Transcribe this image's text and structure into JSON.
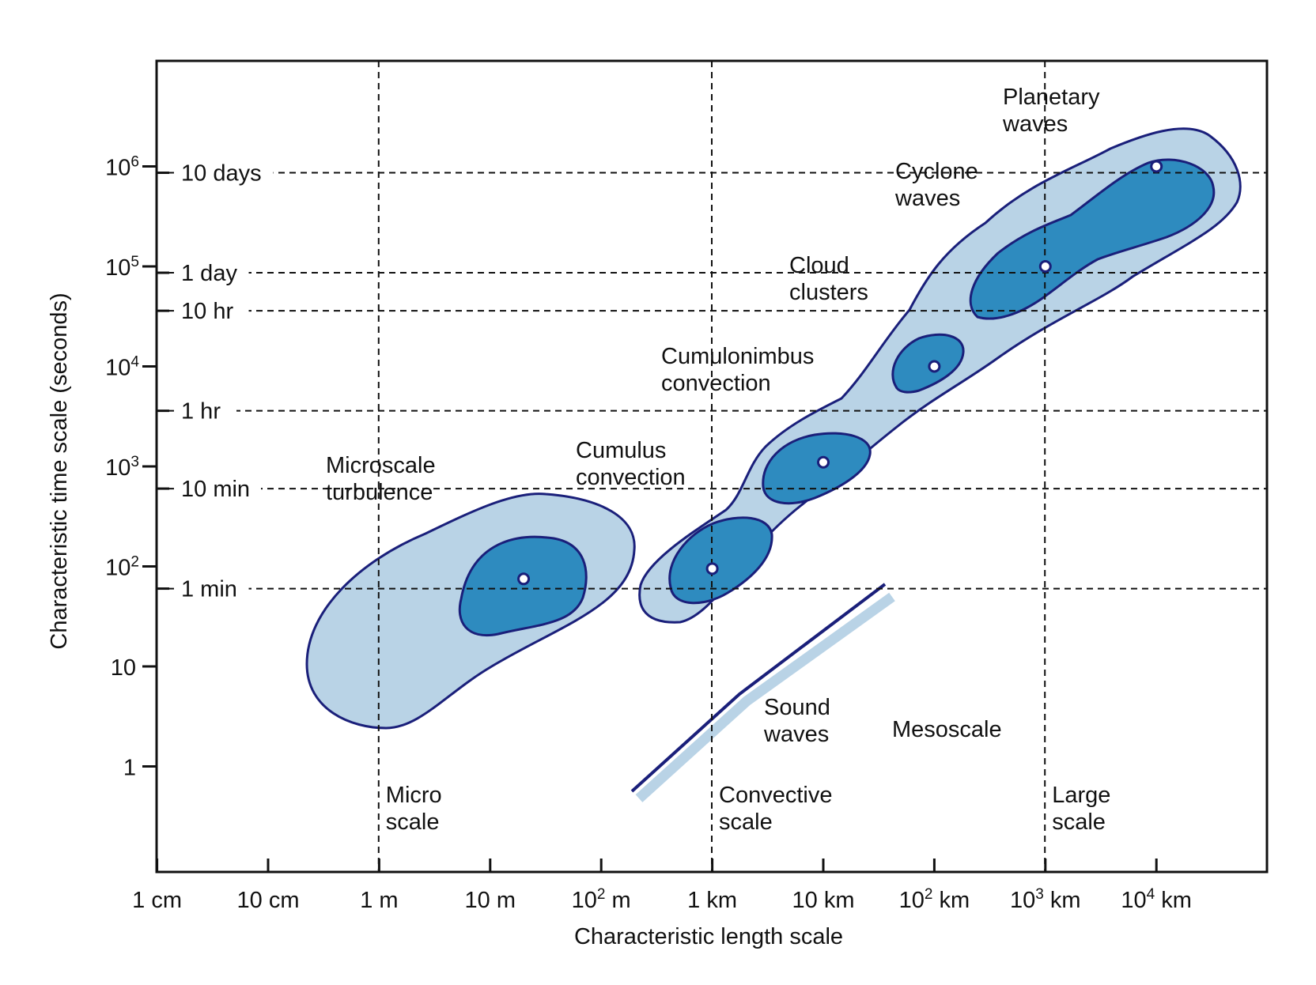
{
  "chart_data": {
    "type": "scatter",
    "title": "",
    "xlabel": "Characteristic length scale",
    "ylabel": "Characteristic time scale (seconds)",
    "x_scale": "log",
    "y_scale": "log",
    "x_unit": "m",
    "y_unit": "s",
    "xlim": [
      0.01,
      100000000
    ],
    "ylim": [
      0.1,
      10000000
    ],
    "grid": "dashed reference lines",
    "legend": "none",
    "colors": {
      "outline": "#1a1f7a",
      "outer_region": "#b9d3e6",
      "inner_region": "#2e8bbf",
      "sound_band": "#b9d3e6",
      "point": "#ffffff",
      "grid": "#111111"
    },
    "x_ticks": [
      {
        "value": 0.01,
        "label": "1 cm"
      },
      {
        "value": 0.1,
        "label": "10 cm"
      },
      {
        "value": 1,
        "label": "1 m"
      },
      {
        "value": 10,
        "label": "10 m"
      },
      {
        "value": 100,
        "base": "10",
        "sup": "2",
        "unit": " m"
      },
      {
        "value": 1000,
        "label": "1 km"
      },
      {
        "value": 10000,
        "label": "10 km"
      },
      {
        "value": 100000,
        "base": "10",
        "sup": "2",
        "unit": " km"
      },
      {
        "value": 1000000,
        "base": "10",
        "sup": "3",
        "unit": " km"
      },
      {
        "value": 10000000,
        "base": "10",
        "sup": "4",
        "unit": " km"
      }
    ],
    "y_ticks": [
      {
        "value": 1,
        "label": "1"
      },
      {
        "value": 10,
        "label": "10"
      },
      {
        "value": 100,
        "base": "10",
        "sup": "2"
      },
      {
        "value": 1000,
        "base": "10",
        "sup": "3"
      },
      {
        "value": 10000,
        "base": "10",
        "sup": "4"
      },
      {
        "value": 100000,
        "base": "10",
        "sup": "5"
      },
      {
        "value": 1000000,
        "base": "10",
        "sup": "6"
      }
    ],
    "time_reference_lines": [
      {
        "value": 60,
        "label": "1 min"
      },
      {
        "value": 600,
        "label": "10 min"
      },
      {
        "value": 3600,
        "label": "1 hr"
      },
      {
        "value": 36000,
        "label": "10 hr"
      },
      {
        "value": 86400,
        "label": "1 day"
      },
      {
        "value": 864000,
        "label": "10 days"
      }
    ],
    "scale_boundaries": [
      {
        "value": 1,
        "lines": [
          "Micro",
          "scale"
        ]
      },
      {
        "value": 1000,
        "lines": [
          "Convective",
          "scale"
        ]
      },
      {
        "value": 1000000,
        "lines": [
          "Large",
          "scale"
        ]
      }
    ],
    "mesoscale_label": "Mesoscale",
    "points": [
      {
        "name": "Microscale turbulence",
        "x": 20,
        "y": 75
      },
      {
        "name": "Cumulus convection",
        "x": 1000,
        "y": 95
      },
      {
        "name": "Cumulonimbus convection",
        "x": 10000,
        "y": 1100
      },
      {
        "name": "Cloud clusters",
        "x": 100000,
        "y": 10000
      },
      {
        "name": "Cyclone waves",
        "x": 1000000,
        "y": 100000
      },
      {
        "name": "Planetary waves",
        "x": 10000000,
        "y": 1000000
      }
    ],
    "region_labels": [
      {
        "lines": [
          "Microscale",
          "turbulence"
        ]
      },
      {
        "lines": [
          "Cumulus",
          "convection"
        ]
      },
      {
        "lines": [
          "Cumulonimbus",
          "convection"
        ]
      },
      {
        "lines": [
          "Cloud",
          "clusters"
        ]
      },
      {
        "lines": [
          "Cyclone",
          "waves"
        ]
      },
      {
        "lines": [
          "Planetary",
          "waves"
        ]
      },
      {
        "lines": [
          "Sound",
          "waves"
        ]
      }
    ],
    "sound_waves_line": {
      "x_start": 200,
      "x_end": 300000
    }
  }
}
